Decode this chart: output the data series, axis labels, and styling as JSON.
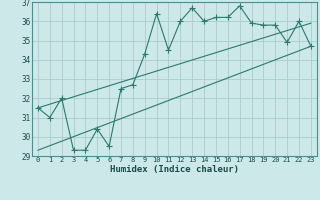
{
  "title": "",
  "xlabel": "Humidex (Indice chaleur)",
  "bg_color": "#cce8e8",
  "line_color": "#2a7a6e",
  "grid_color": "#aacccc",
  "xlim": [
    -0.5,
    23.5
  ],
  "ylim": [
    29,
    37
  ],
  "xticks": [
    0,
    1,
    2,
    3,
    4,
    5,
    6,
    7,
    8,
    9,
    10,
    11,
    12,
    13,
    14,
    15,
    16,
    17,
    18,
    19,
    20,
    21,
    22,
    23
  ],
  "yticks": [
    29,
    30,
    31,
    32,
    33,
    34,
    35,
    36,
    37
  ],
  "jagged_x": [
    0,
    1,
    2,
    3,
    4,
    5,
    6,
    7,
    8,
    9,
    10,
    11,
    12,
    13,
    14,
    15,
    16,
    17,
    18,
    19,
    20,
    21,
    22,
    23
  ],
  "jagged_y": [
    31.5,
    31.0,
    32.0,
    29.3,
    29.3,
    30.4,
    29.5,
    32.5,
    32.7,
    34.3,
    36.4,
    34.5,
    36.0,
    36.7,
    36.0,
    36.2,
    36.2,
    36.8,
    35.9,
    35.8,
    35.8,
    34.9,
    36.0,
    34.7
  ],
  "trend1_x": [
    0,
    23
  ],
  "trend1_y": [
    31.5,
    35.9
  ],
  "trend2_x": [
    0,
    23
  ],
  "trend2_y": [
    29.3,
    34.7
  ],
  "marker_style": "+",
  "marker_size": 4,
  "linewidth": 0.8
}
